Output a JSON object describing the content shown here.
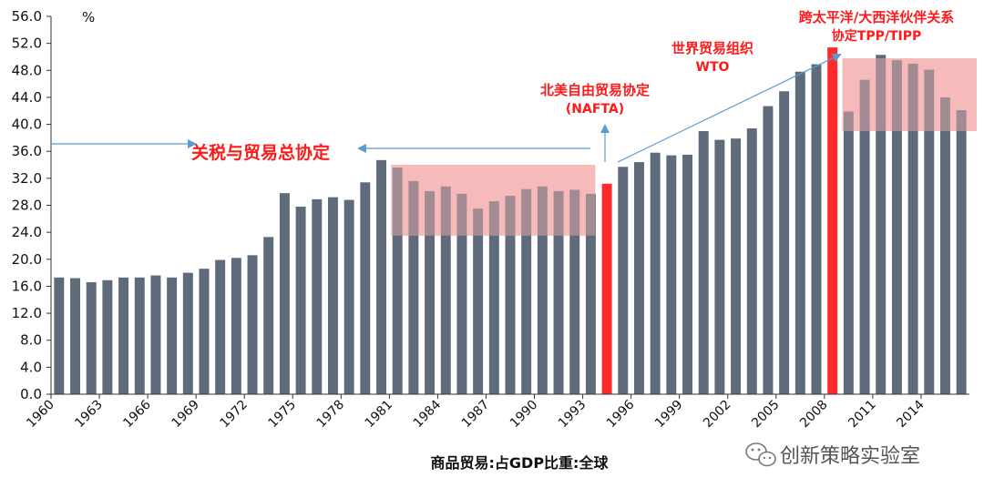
{
  "chart_data": {
    "type": "bar",
    "unit_label": "%",
    "xlabel": "商品贸易:占GDP比重:全球",
    "ylim": [
      0,
      56
    ],
    "ytick_labels": [
      "0.0",
      "4.0",
      "8.0",
      "12.0",
      "16.0",
      "20.0",
      "24.0",
      "28.0",
      "32.0",
      "36.0",
      "40.0",
      "44.0",
      "48.0",
      "52.0",
      "56.0"
    ],
    "x_tick_labels": [
      "1960",
      "1963",
      "1966",
      "1969",
      "1972",
      "1975",
      "1978",
      "1981",
      "1984",
      "1987",
      "1990",
      "1993",
      "1996",
      "1999",
      "2002",
      "2005",
      "2008",
      "2011",
      "2014"
    ],
    "categories": [
      1960,
      1961,
      1962,
      1963,
      1964,
      1965,
      1966,
      1967,
      1968,
      1969,
      1970,
      1971,
      1972,
      1973,
      1974,
      1975,
      1976,
      1977,
      1978,
      1979,
      1980,
      1981,
      1982,
      1983,
      1984,
      1985,
      1986,
      1987,
      1988,
      1989,
      1990,
      1991,
      1992,
      1993,
      1994,
      1995,
      1996,
      1997,
      1998,
      1999,
      2000,
      2001,
      2002,
      2003,
      2004,
      2005,
      2006,
      2007,
      2008,
      2009,
      2010,
      2011,
      2012,
      2013,
      2014,
      2015,
      2016
    ],
    "values": [
      17.3,
      17.2,
      16.6,
      16.9,
      17.3,
      17.3,
      17.6,
      17.3,
      18.0,
      18.6,
      19.9,
      20.2,
      20.6,
      23.3,
      29.8,
      27.8,
      28.9,
      29.2,
      28.8,
      31.4,
      34.7,
      33.6,
      31.6,
      30.1,
      30.8,
      29.7,
      27.5,
      28.6,
      29.4,
      30.4,
      30.8,
      30.1,
      30.3,
      29.7,
      31.2,
      33.7,
      34.4,
      35.8,
      35.4,
      35.5,
      39.0,
      37.7,
      37.9,
      39.4,
      42.7,
      44.9,
      47.8,
      48.9,
      51.4,
      41.9,
      46.6,
      50.3,
      49.5,
      49.0,
      48.1,
      44.0,
      42.1
    ],
    "highlighted_categories": [
      1994,
      2008
    ],
    "colors": {
      "bar": "#5f6b7a",
      "highlight": "#ff2a2a",
      "band": "#f7b4b4",
      "arrow": "#5b9bd5"
    },
    "shaded_periods": [
      {
        "from": 1981,
        "to": 1993,
        "ymin": 23.5,
        "ymax": 34.0
      },
      {
        "from": 2009,
        "to": 2016,
        "ymin": 39.0,
        "ymax": 49.8
      }
    ],
    "annotations": {
      "gatt": "关税与贸易总协定",
      "nafta_line1": "北美自由贸易协定",
      "nafta_line2": "(NAFTA)",
      "wto_line1": "世界贸易组织",
      "wto_line2": "WTO",
      "tpp_line1": "跨太平洋/大西洋伙伴关系",
      "tpp_line2": "协定TPP/TIPP"
    }
  },
  "watermark": "创新策略实验室"
}
